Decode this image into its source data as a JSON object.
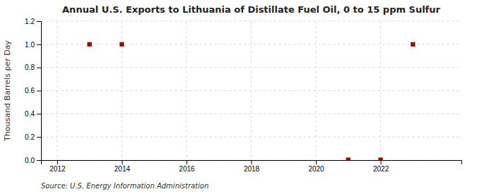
{
  "chart_data": {
    "type": "scatter",
    "title": "Annual U.S. Exports to Lithuania of Distillate Fuel Oil, 0 to 15 ppm Sulfur",
    "y_label": "Thousand Barrels per Day",
    "source": "Source: U.S. Energy Information Administration",
    "x": [
      2013,
      2014,
      2021,
      2022,
      2023
    ],
    "values": [
      1.0,
      1.0,
      0.003,
      0.003,
      1.0
    ],
    "color": "#aa0000",
    "marker": "square",
    "xlim": [
      2011.5,
      2024.5
    ],
    "ylim": [
      0.0,
      1.2
    ],
    "xticks": [
      2012,
      2014,
      2016,
      2018,
      2020,
      2022
    ],
    "yticks": [
      {
        "value": 0.0,
        "label": "0.0"
      },
      0.2,
      0.4,
      0.6,
      0.8,
      {
        "value": 1.0,
        "label": "1.0"
      },
      1.2
    ],
    "grid": true
  }
}
